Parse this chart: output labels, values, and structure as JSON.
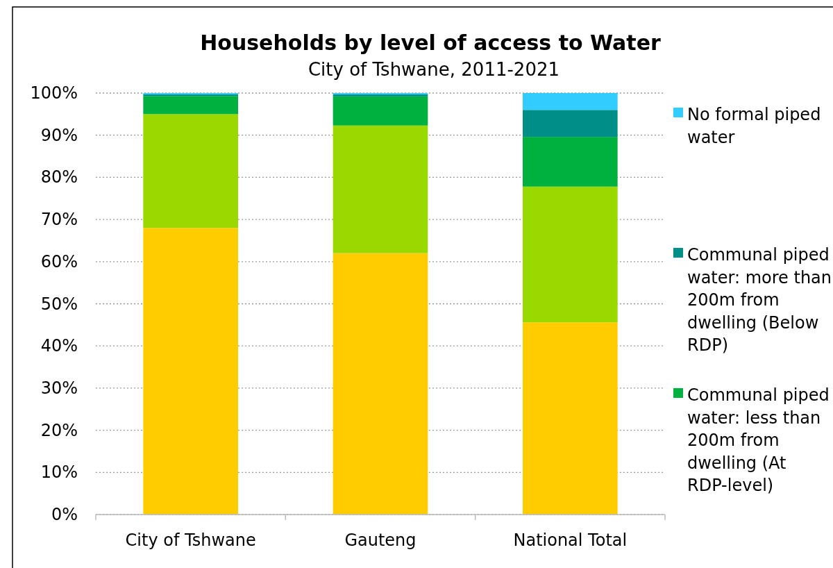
{
  "chart_data": {
    "type": "bar",
    "title": "Households by level of access to Water",
    "subtitle": "City of Tshwane, 2011-2021",
    "categories": [
      "City of Tshwane",
      "Gauteng",
      "National Total"
    ],
    "stacked": true,
    "series": [
      {
        "color": "#ffcc00",
        "values": [
          68,
          62,
          45.6
        ]
      },
      {
        "color": "#99d900",
        "values": [
          27,
          30.3,
          32.2
        ]
      },
      {
        "name": "Communal piped water: less than 200m from dwelling (At RDP-level)",
        "color": "#00b140",
        "values": [
          4.3,
          6.9,
          11.8
        ]
      },
      {
        "name": "Communal piped water: more than 200m from dwelling (Below RDP)",
        "color": "#008f88",
        "values": [
          0.4,
          0.5,
          6.4
        ]
      },
      {
        "name": "No formal piped water",
        "color": "#33ccff",
        "values": [
          0.3,
          0.3,
          4.0
        ]
      }
    ],
    "ylim": [
      0,
      100
    ],
    "yticks": [
      {
        "value": 0,
        "label": "0%"
      },
      {
        "value": 10,
        "label": "10%"
      },
      {
        "value": 20,
        "label": "20%"
      },
      {
        "value": 30,
        "label": "30%"
      },
      {
        "value": 40,
        "label": "40%"
      },
      {
        "value": 50,
        "label": "50%"
      },
      {
        "value": 60,
        "label": "60%"
      },
      {
        "value": 70,
        "label": "70%"
      },
      {
        "value": 80,
        "label": "80%"
      },
      {
        "value": 90,
        "label": "90%"
      },
      {
        "value": 100,
        "label": "100%"
      }
    ],
    "grid": "y",
    "legend": "right"
  }
}
